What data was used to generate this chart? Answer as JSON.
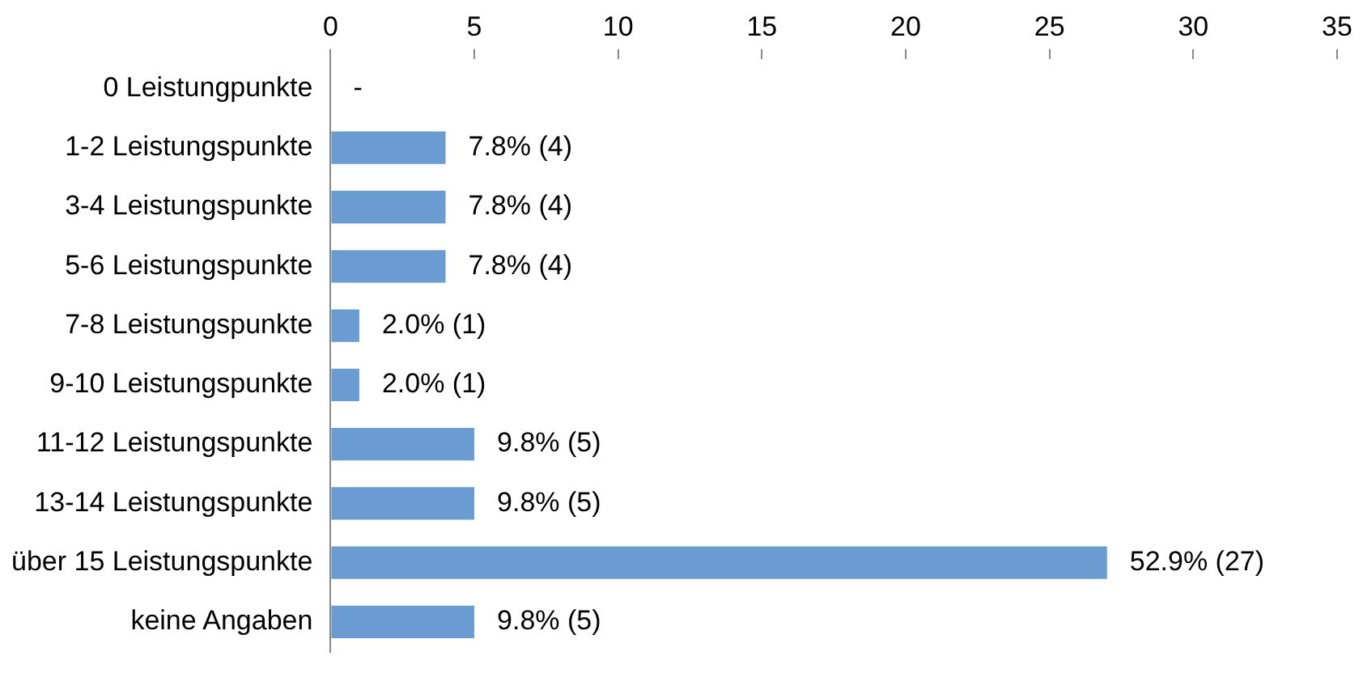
{
  "chart_data": {
    "type": "bar",
    "orientation": "horizontal",
    "categories": [
      "0 Leistungpunkte",
      "1-2 Leistungspunkte",
      "3-4 Leistungspunkte",
      "5-6 Leistungspunkte",
      "7-8 Leistungspunkte",
      "9-10 Leistungspunkte",
      "11-12 Leistungspunkte",
      "13-14 Leistungspunkte",
      "über 15 Leistungspunkte",
      "keine Angaben"
    ],
    "values": [
      0,
      4,
      4,
      4,
      1,
      1,
      5,
      5,
      27,
      5
    ],
    "value_labels": [
      "-",
      "7.8% (4)",
      "7.8% (4)",
      "7.8% (4)",
      "2.0% (1)",
      "2.0% (1)",
      "9.8% (5)",
      "9.8% (5)",
      "52.9% (27)",
      "9.8% (5)"
    ],
    "color": "#6a9bd1",
    "xlim": [
      0,
      35
    ],
    "xticks": [
      0,
      5,
      10,
      15,
      20,
      25,
      30,
      35
    ],
    "grid": false,
    "legend": false
  }
}
